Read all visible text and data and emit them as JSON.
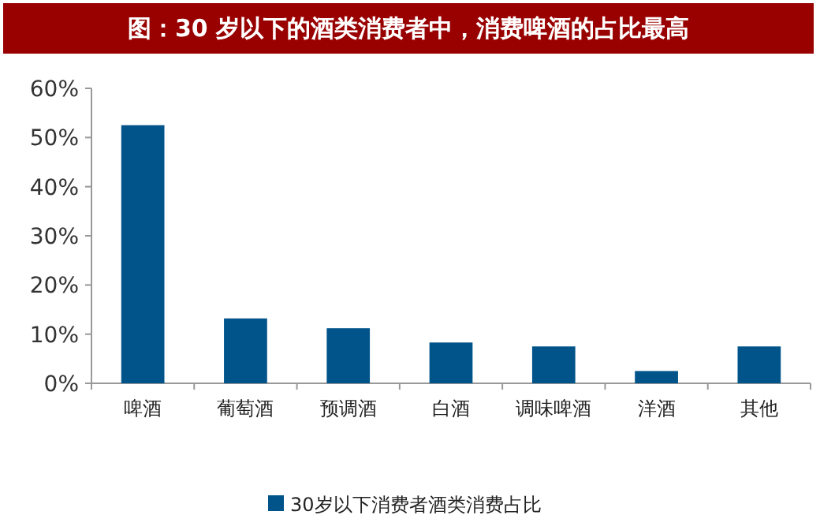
{
  "chart_data": {
    "type": "bar",
    "title": "图：30 岁以下的酒类消费者中，消费啤酒的占比最高",
    "categories": [
      "啤酒",
      "葡萄酒",
      "预调酒",
      "白酒",
      "调味啤酒",
      "洋酒",
      "其他"
    ],
    "series": [
      {
        "name": "30岁以下消费者酒类消费占比",
        "color": "#00548a",
        "values": [
          52.5,
          13.2,
          11.2,
          8.3,
          7.5,
          2.5,
          7.5
        ]
      }
    ],
    "ylim": [
      0,
      60
    ],
    "yticks": [
      {
        "value": 0,
        "label": "0%"
      },
      {
        "value": 10,
        "label": "10%"
      },
      {
        "value": 20,
        "label": "20%"
      },
      {
        "value": 30,
        "label": "30%"
      },
      {
        "value": 40,
        "label": "40%"
      },
      {
        "value": 50,
        "label": "50%"
      },
      {
        "value": 60,
        "label": "60%"
      }
    ],
    "legend": "bottom"
  }
}
